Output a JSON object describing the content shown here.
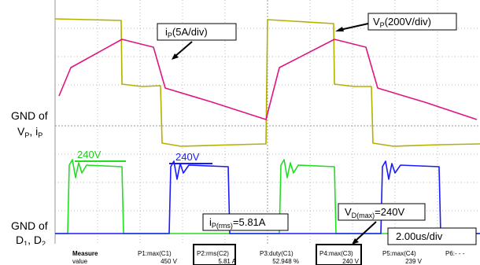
{
  "labels": {
    "ip_scale": {
      "main": "i",
      "sub": "P",
      "rest": "(5A/div)"
    },
    "vp_scale": {
      "main": "V",
      "sub": "P",
      "rest": "(200V/div)"
    },
    "gnd_top": {
      "line1": "GND of",
      "a": "V",
      "a_sub": "P",
      "mid": ", i",
      "b_sub": "P"
    },
    "gnd_bottom": {
      "line1": "GND of",
      "a": "D",
      "a_sub": "1",
      "mid": ", D",
      "b_sub": "2"
    },
    "green_level": "240V",
    "blue_level": "240V",
    "ip_rms": {
      "main": "i",
      "sub": "P(rms)",
      "rest": "=5.81A"
    },
    "vd_max": {
      "main": "V",
      "sub": "D(max)",
      "rest": "=240V"
    },
    "timebase": "2.00us/div"
  },
  "measure": {
    "header": "Measure",
    "row_label": "value",
    "params": [
      {
        "name": "P1:max(C1)",
        "value": "450 V"
      },
      {
        "name": "P2:rms(C2)",
        "value": "5.81 A"
      },
      {
        "name": "P3:duty(C1)",
        "value": "52.948 %"
      },
      {
        "name": "P4:max(C3)",
        "value": "240 V"
      },
      {
        "name": "P5:max(C4)",
        "value": "239 V"
      },
      {
        "name": "P6:- - -"
      }
    ]
  }
}
